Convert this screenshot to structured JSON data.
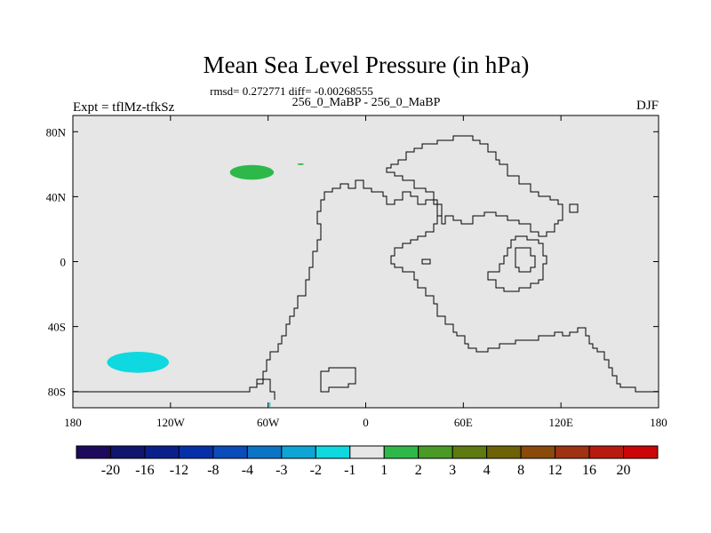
{
  "chart_data": {
    "type": "heatmap",
    "title": "Mean Sea Level Pressure (in hPa)",
    "stats_line": "rmsd= 0.272771 diff= -0.00268555",
    "subtitle_center": "256_0_MaBP - 256_0_MaBP",
    "subtitle_left": "Expt = tflMz-tfkSz",
    "subtitle_right": "DJF",
    "x_range": [
      -180,
      180
    ],
    "y_range": [
      -90,
      90
    ],
    "x_ticks": [
      {
        "value": -180,
        "label": "180"
      },
      {
        "value": -120,
        "label": "120W"
      },
      {
        "value": -60,
        "label": "60W"
      },
      {
        "value": 0,
        "label": "0"
      },
      {
        "value": 60,
        "label": "60E"
      },
      {
        "value": 120,
        "label": "120E"
      },
      {
        "value": 180,
        "label": "180"
      }
    ],
    "y_ticks": [
      {
        "value": 80,
        "label": "80N"
      },
      {
        "value": 40,
        "label": "40N"
      },
      {
        "value": 0,
        "label": "0"
      },
      {
        "value": -40,
        "label": "40S"
      },
      {
        "value": -80,
        "label": "80S"
      }
    ],
    "colorbar": {
      "levels": [
        "-20",
        "-16",
        "-12",
        "-8",
        "-4",
        "-3",
        "-2",
        "-1",
        "1",
        "2",
        "3",
        "4",
        "8",
        "12",
        "16",
        "20"
      ],
      "colors": [
        "#1e0a5c",
        "#12156e",
        "#0a1f8a",
        "#0630a8",
        "#0a4cba",
        "#0c74c4",
        "#0ea4d4",
        "#10d8e0",
        "#e6e6e6",
        "#2fb84a",
        "#4a9a26",
        "#5e7a10",
        "#6e6206",
        "#8a4a0c",
        "#9e3212",
        "#b81a10",
        "#cc0606"
      ]
    },
    "background_color": "#e6e6e6",
    "anomalies": [
      {
        "name": "north-pacific-positive",
        "lon": -70,
        "lat": 55,
        "lon_span": 27,
        "lat_span": 9,
        "category": "1 to 2",
        "color": "#2fb84a"
      },
      {
        "name": "north-atlantic-positive-speck",
        "lon": -40,
        "lat": 60,
        "lon_span": 4,
        "lat_span": 1,
        "category": "1 to 2",
        "color": "#2fb84a"
      },
      {
        "name": "south-pacific-negative",
        "lon": -140,
        "lat": -62,
        "lon_span": 38,
        "lat_span": 13,
        "category": "-2 to -1",
        "color": "#10d8e0"
      },
      {
        "name": "antarctic-negative-speck",
        "lon": -59,
        "lat": -88,
        "lon_span": 1,
        "lat_span": 3,
        "category": "-2 to -1",
        "color": "#10d8e0"
      }
    ]
  }
}
